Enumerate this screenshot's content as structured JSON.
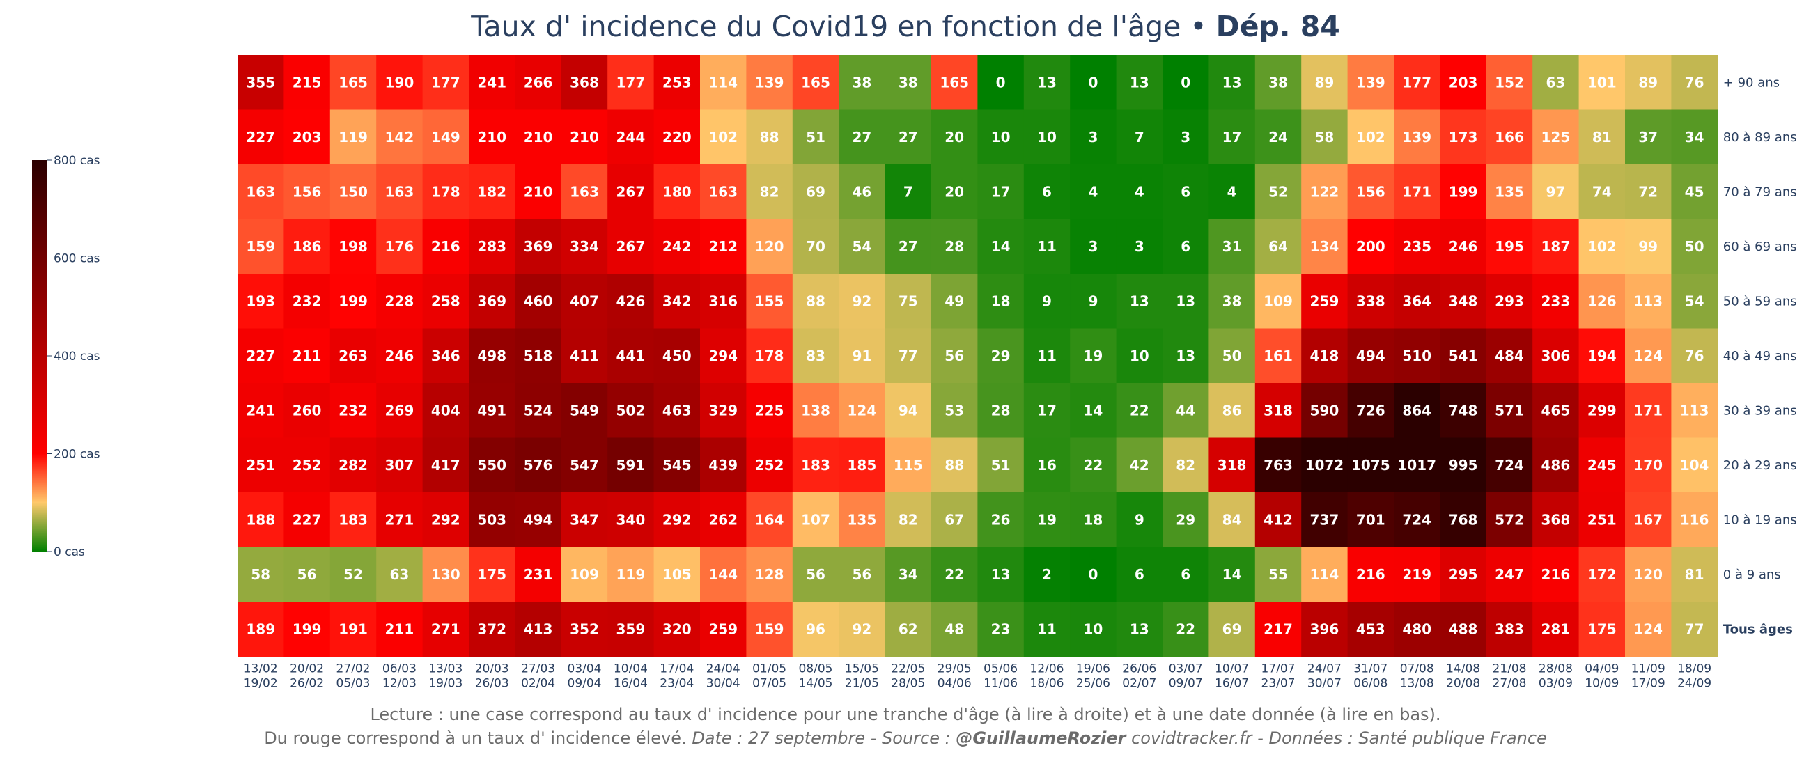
{
  "title": {
    "main": "Taux d' incidence du Covid19 en fonction de l'âge •",
    "strong": "Dép. 84"
  },
  "footer": {
    "line1": "Lecture : une case correspond au taux d' incidence pour une tranche d'âge (à lire à droite) et à une date donnée (à lire en bas).",
    "line2_plain": "Du rouge correspond à un taux d' incidence élevé.",
    "line2_date": "Date : 27 septembre - Source :",
    "line2_author": "@GuillaumeRozier",
    "line2_rest": "covidtracker.fr - Données : Santé publique France"
  },
  "colors": {
    "scale": [
      "#008000",
      "#ffc96b",
      "#ff0000",
      "#2b0000"
    ],
    "text": "#ffffff",
    "axis_text": "#2a3f5f"
  },
  "chart_data": {
    "type": "heatmap",
    "colorbar": {
      "range": [
        0,
        800
      ],
      "ticks": [
        {
          "value": 0,
          "label": "0 cas"
        },
        {
          "value": 200,
          "label": "200 cas"
        },
        {
          "value": 400,
          "label": "400 cas"
        },
        {
          "value": 600,
          "label": "600 cas"
        },
        {
          "value": 800,
          "label": "800 cas"
        }
      ]
    },
    "x": [
      [
        "13/02",
        "19/02"
      ],
      [
        "20/02",
        "26/02"
      ],
      [
        "27/02",
        "05/03"
      ],
      [
        "06/03",
        "12/03"
      ],
      [
        "13/03",
        "19/03"
      ],
      [
        "20/03",
        "26/03"
      ],
      [
        "27/03",
        "02/04"
      ],
      [
        "03/04",
        "09/04"
      ],
      [
        "10/04",
        "16/04"
      ],
      [
        "17/04",
        "23/04"
      ],
      [
        "24/04",
        "30/04"
      ],
      [
        "01/05",
        "07/05"
      ],
      [
        "08/05",
        "14/05"
      ],
      [
        "15/05",
        "21/05"
      ],
      [
        "22/05",
        "28/05"
      ],
      [
        "29/05",
        "04/06"
      ],
      [
        "05/06",
        "11/06"
      ],
      [
        "12/06",
        "18/06"
      ],
      [
        "19/06",
        "25/06"
      ],
      [
        "26/06",
        "02/07"
      ],
      [
        "03/07",
        "09/07"
      ],
      [
        "10/07",
        "16/07"
      ],
      [
        "17/07",
        "23/07"
      ],
      [
        "24/07",
        "30/07"
      ],
      [
        "31/07",
        "06/08"
      ],
      [
        "07/08",
        "13/08"
      ],
      [
        "14/08",
        "20/08"
      ],
      [
        "21/08",
        "27/08"
      ],
      [
        "28/08",
        "03/09"
      ],
      [
        "04/09",
        "10/09"
      ],
      [
        "11/09",
        "17/09"
      ],
      [
        "18/09",
        "24/09"
      ]
    ],
    "rows": [
      {
        "label": "+ 90 ans",
        "bold": false,
        "values": [
          355,
          215,
          165,
          190,
          177,
          241,
          266,
          368,
          177,
          253,
          114,
          139,
          165,
          38,
          38,
          165,
          0,
          13,
          0,
          13,
          0,
          13,
          38,
          89,
          139,
          177,
          203,
          152,
          63,
          101,
          89,
          76
        ]
      },
      {
        "label": "80 à 89 ans",
        "bold": false,
        "values": [
          227,
          203,
          119,
          142,
          149,
          210,
          210,
          210,
          244,
          220,
          102,
          88,
          51,
          27,
          27,
          20,
          10,
          10,
          3,
          7,
          3,
          17,
          24,
          58,
          102,
          139,
          173,
          166,
          125,
          81,
          37,
          34
        ]
      },
      {
        "label": "70 à 79 ans",
        "bold": false,
        "values": [
          163,
          156,
          150,
          163,
          178,
          182,
          210,
          163,
          267,
          180,
          163,
          82,
          69,
          46,
          7,
          20,
          17,
          6,
          4,
          4,
          6,
          4,
          52,
          122,
          156,
          171,
          199,
          135,
          97,
          74,
          72,
          45
        ]
      },
      {
        "label": "60 à 69 ans",
        "bold": false,
        "values": [
          159,
          186,
          198,
          176,
          216,
          283,
          369,
          334,
          267,
          242,
          212,
          120,
          70,
          54,
          27,
          28,
          14,
          11,
          3,
          3,
          6,
          31,
          64,
          134,
          200,
          235,
          246,
          195,
          187,
          102,
          99,
          50
        ]
      },
      {
        "label": "50 à 59 ans",
        "bold": false,
        "values": [
          193,
          232,
          199,
          228,
          258,
          369,
          460,
          407,
          426,
          342,
          316,
          155,
          88,
          92,
          75,
          49,
          18,
          9,
          9,
          13,
          13,
          38,
          109,
          259,
          338,
          364,
          348,
          293,
          233,
          126,
          113,
          54
        ]
      },
      {
        "label": "40 à 49 ans",
        "bold": false,
        "values": [
          227,
          211,
          263,
          246,
          346,
          498,
          518,
          411,
          441,
          450,
          294,
          178,
          83,
          91,
          77,
          56,
          29,
          11,
          19,
          10,
          13,
          50,
          161,
          418,
          494,
          510,
          541,
          484,
          306,
          194,
          124,
          76
        ]
      },
      {
        "label": "30 à 39 ans",
        "bold": false,
        "values": [
          241,
          260,
          232,
          269,
          404,
          491,
          524,
          549,
          502,
          463,
          329,
          225,
          138,
          124,
          94,
          53,
          28,
          17,
          14,
          22,
          44,
          86,
          318,
          590,
          726,
          864,
          748,
          571,
          465,
          299,
          171,
          113
        ]
      },
      {
        "label": "20 à 29 ans",
        "bold": false,
        "values": [
          251,
          252,
          282,
          307,
          417,
          550,
          576,
          547,
          591,
          545,
          439,
          252,
          183,
          185,
          115,
          88,
          51,
          16,
          22,
          42,
          82,
          318,
          763,
          1072,
          1075,
          1017,
          995,
          724,
          486,
          245,
          170,
          104
        ]
      },
      {
        "label": "10 à 19 ans",
        "bold": false,
        "values": [
          188,
          227,
          183,
          271,
          292,
          503,
          494,
          347,
          340,
          292,
          262,
          164,
          107,
          135,
          82,
          67,
          26,
          19,
          18,
          9,
          29,
          84,
          412,
          737,
          701,
          724,
          768,
          572,
          368,
          251,
          167,
          116
        ]
      },
      {
        "label": "0 à 9 ans",
        "bold": false,
        "values": [
          58,
          56,
          52,
          63,
          130,
          175,
          231,
          109,
          119,
          105,
          144,
          128,
          56,
          56,
          34,
          22,
          13,
          2,
          0,
          6,
          6,
          14,
          55,
          114,
          216,
          219,
          295,
          247,
          216,
          172,
          120,
          81
        ]
      },
      {
        "label": "Tous âges",
        "bold": true,
        "values": [
          189,
          199,
          191,
          211,
          271,
          372,
          413,
          352,
          359,
          320,
          259,
          159,
          96,
          92,
          62,
          48,
          23,
          11,
          10,
          13,
          22,
          69,
          217,
          396,
          453,
          480,
          488,
          383,
          281,
          175,
          124,
          77
        ]
      }
    ]
  }
}
